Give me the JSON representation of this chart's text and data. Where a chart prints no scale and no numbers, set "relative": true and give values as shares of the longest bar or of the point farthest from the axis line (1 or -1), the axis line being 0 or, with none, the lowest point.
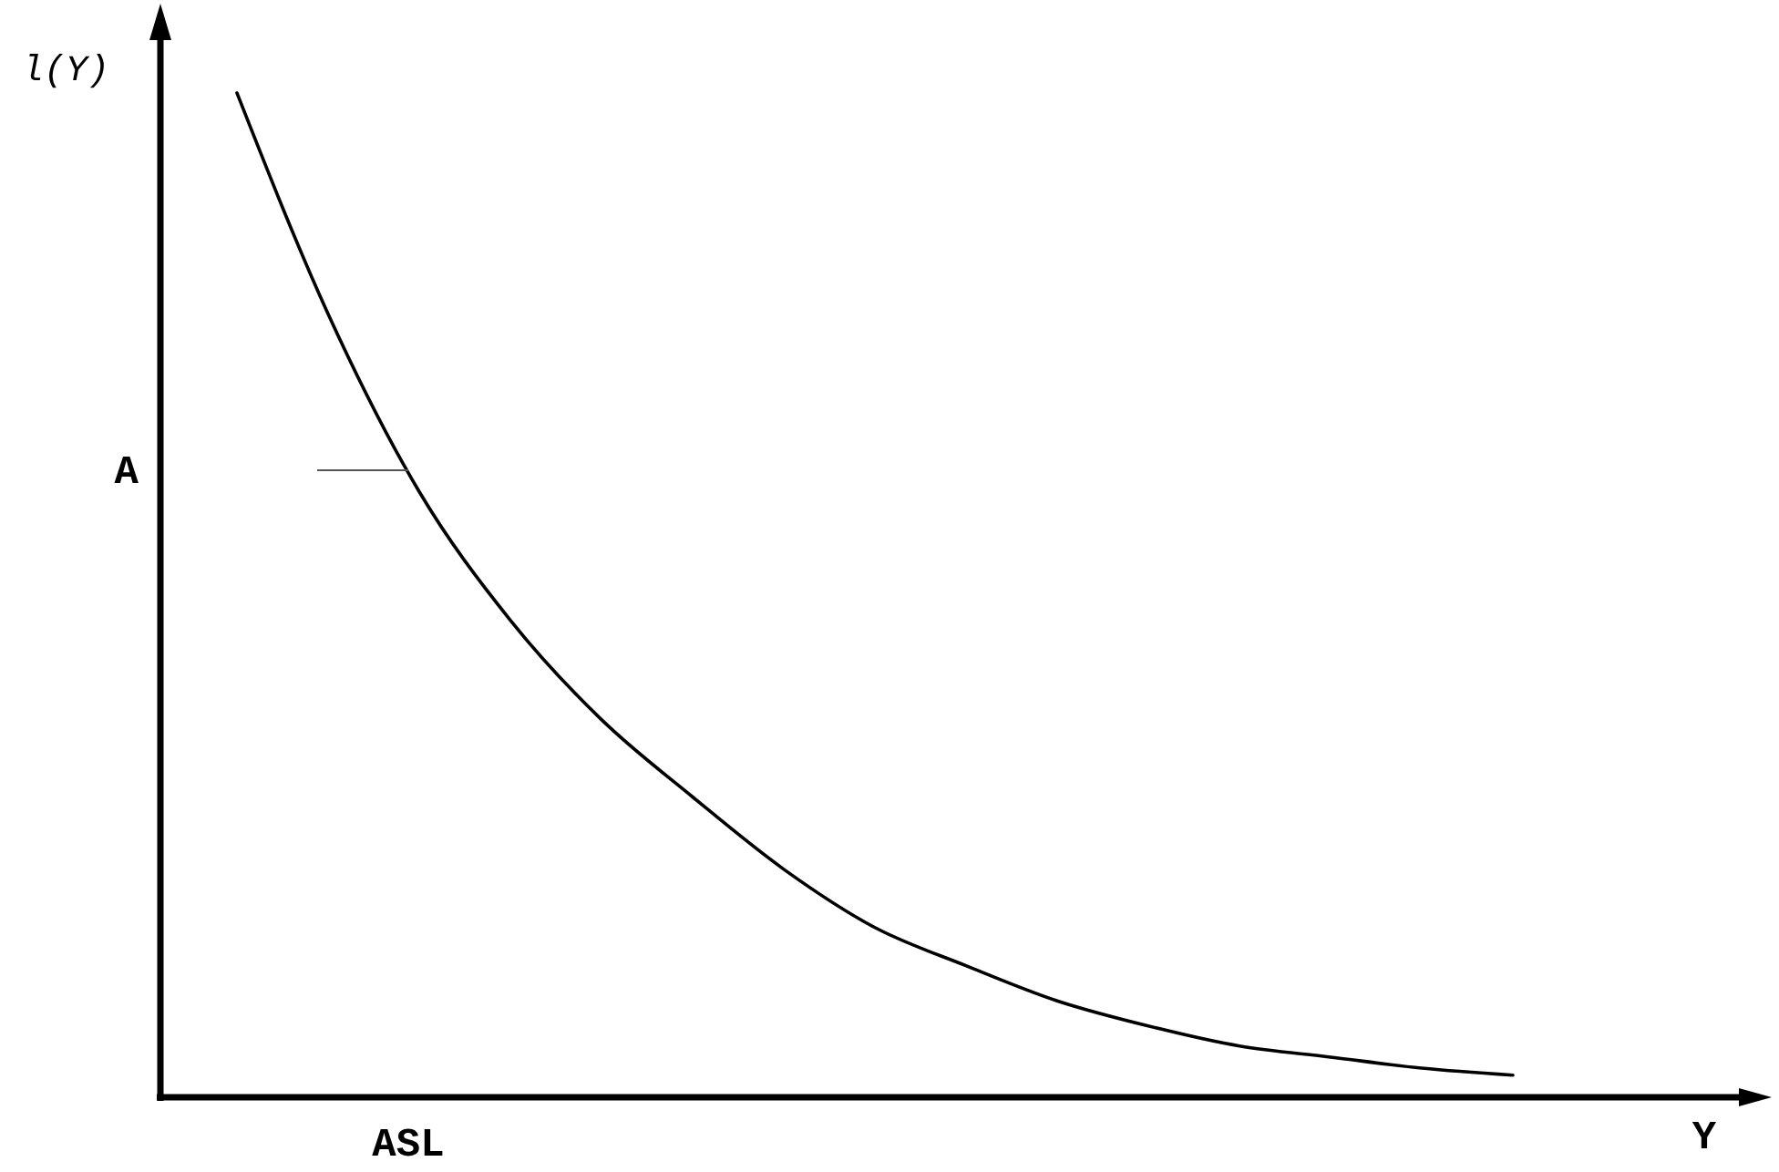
{
  "chart_data": {
    "type": "line",
    "relative": true,
    "xlabel": "Y",
    "ylabel": "l(Y)",
    "categories": [
      null,
      null,
      null,
      null,
      null,
      null,
      null,
      null,
      null,
      null,
      null,
      null,
      null,
      null,
      null
    ],
    "series": [
      {
        "color": "#000000",
        "values": [
          1,
          0.78,
          0.603,
          0.475,
          0.376,
          0.299,
          0.227,
          0.169,
          0.131,
          0.096,
          0.071,
          0.051,
          0.04,
          0.029,
          0.022
        ]
      }
    ],
    "annotations": [
      "A",
      "ASL"
    ],
    "marker": "none",
    "line_style": "solid"
  }
}
